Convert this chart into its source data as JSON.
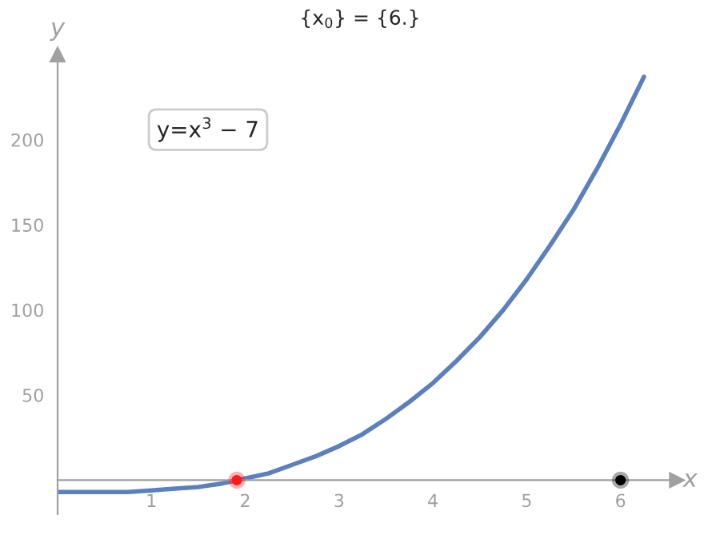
{
  "chart_data": {
    "type": "line",
    "title": "{x$_{0}$} = {6.}",
    "xlabel": "x",
    "ylabel": "y",
    "annotations": [
      "y=x$^{3}$ − 7"
    ],
    "xlim": [
      0,
      6.6
    ],
    "ylim": [
      -20,
      250
    ],
    "xticks": [
      1,
      2,
      3,
      4,
      5,
      6
    ],
    "yticks": [
      50,
      100,
      150,
      200
    ],
    "grid": false,
    "legend": false,
    "series": [
      {
        "color": "#5b7fbf",
        "x": [
          0,
          0.25,
          0.5,
          0.75,
          1,
          1.25,
          1.5,
          1.75,
          2,
          2.25,
          2.5,
          2.75,
          3,
          3.25,
          3.5,
          3.75,
          4,
          4.25,
          4.5,
          4.75,
          5,
          5.25,
          5.5,
          5.75,
          6,
          6.25
        ],
        "values": [
          -7,
          -7,
          -7,
          -7,
          -6,
          -5,
          -4,
          -2,
          1,
          4,
          9,
          14,
          20,
          27,
          36,
          46,
          57,
          70,
          84,
          100,
          118,
          138,
          159,
          183,
          209,
          237
        ]
      },
      {
        "type": "scatter",
        "color": "#ff1a1a",
        "x": [
          1.91
        ],
        "values": [
          0
        ]
      },
      {
        "type": "scatter",
        "color": "#000000",
        "x": [
          6
        ],
        "values": [
          0
        ]
      }
    ]
  }
}
